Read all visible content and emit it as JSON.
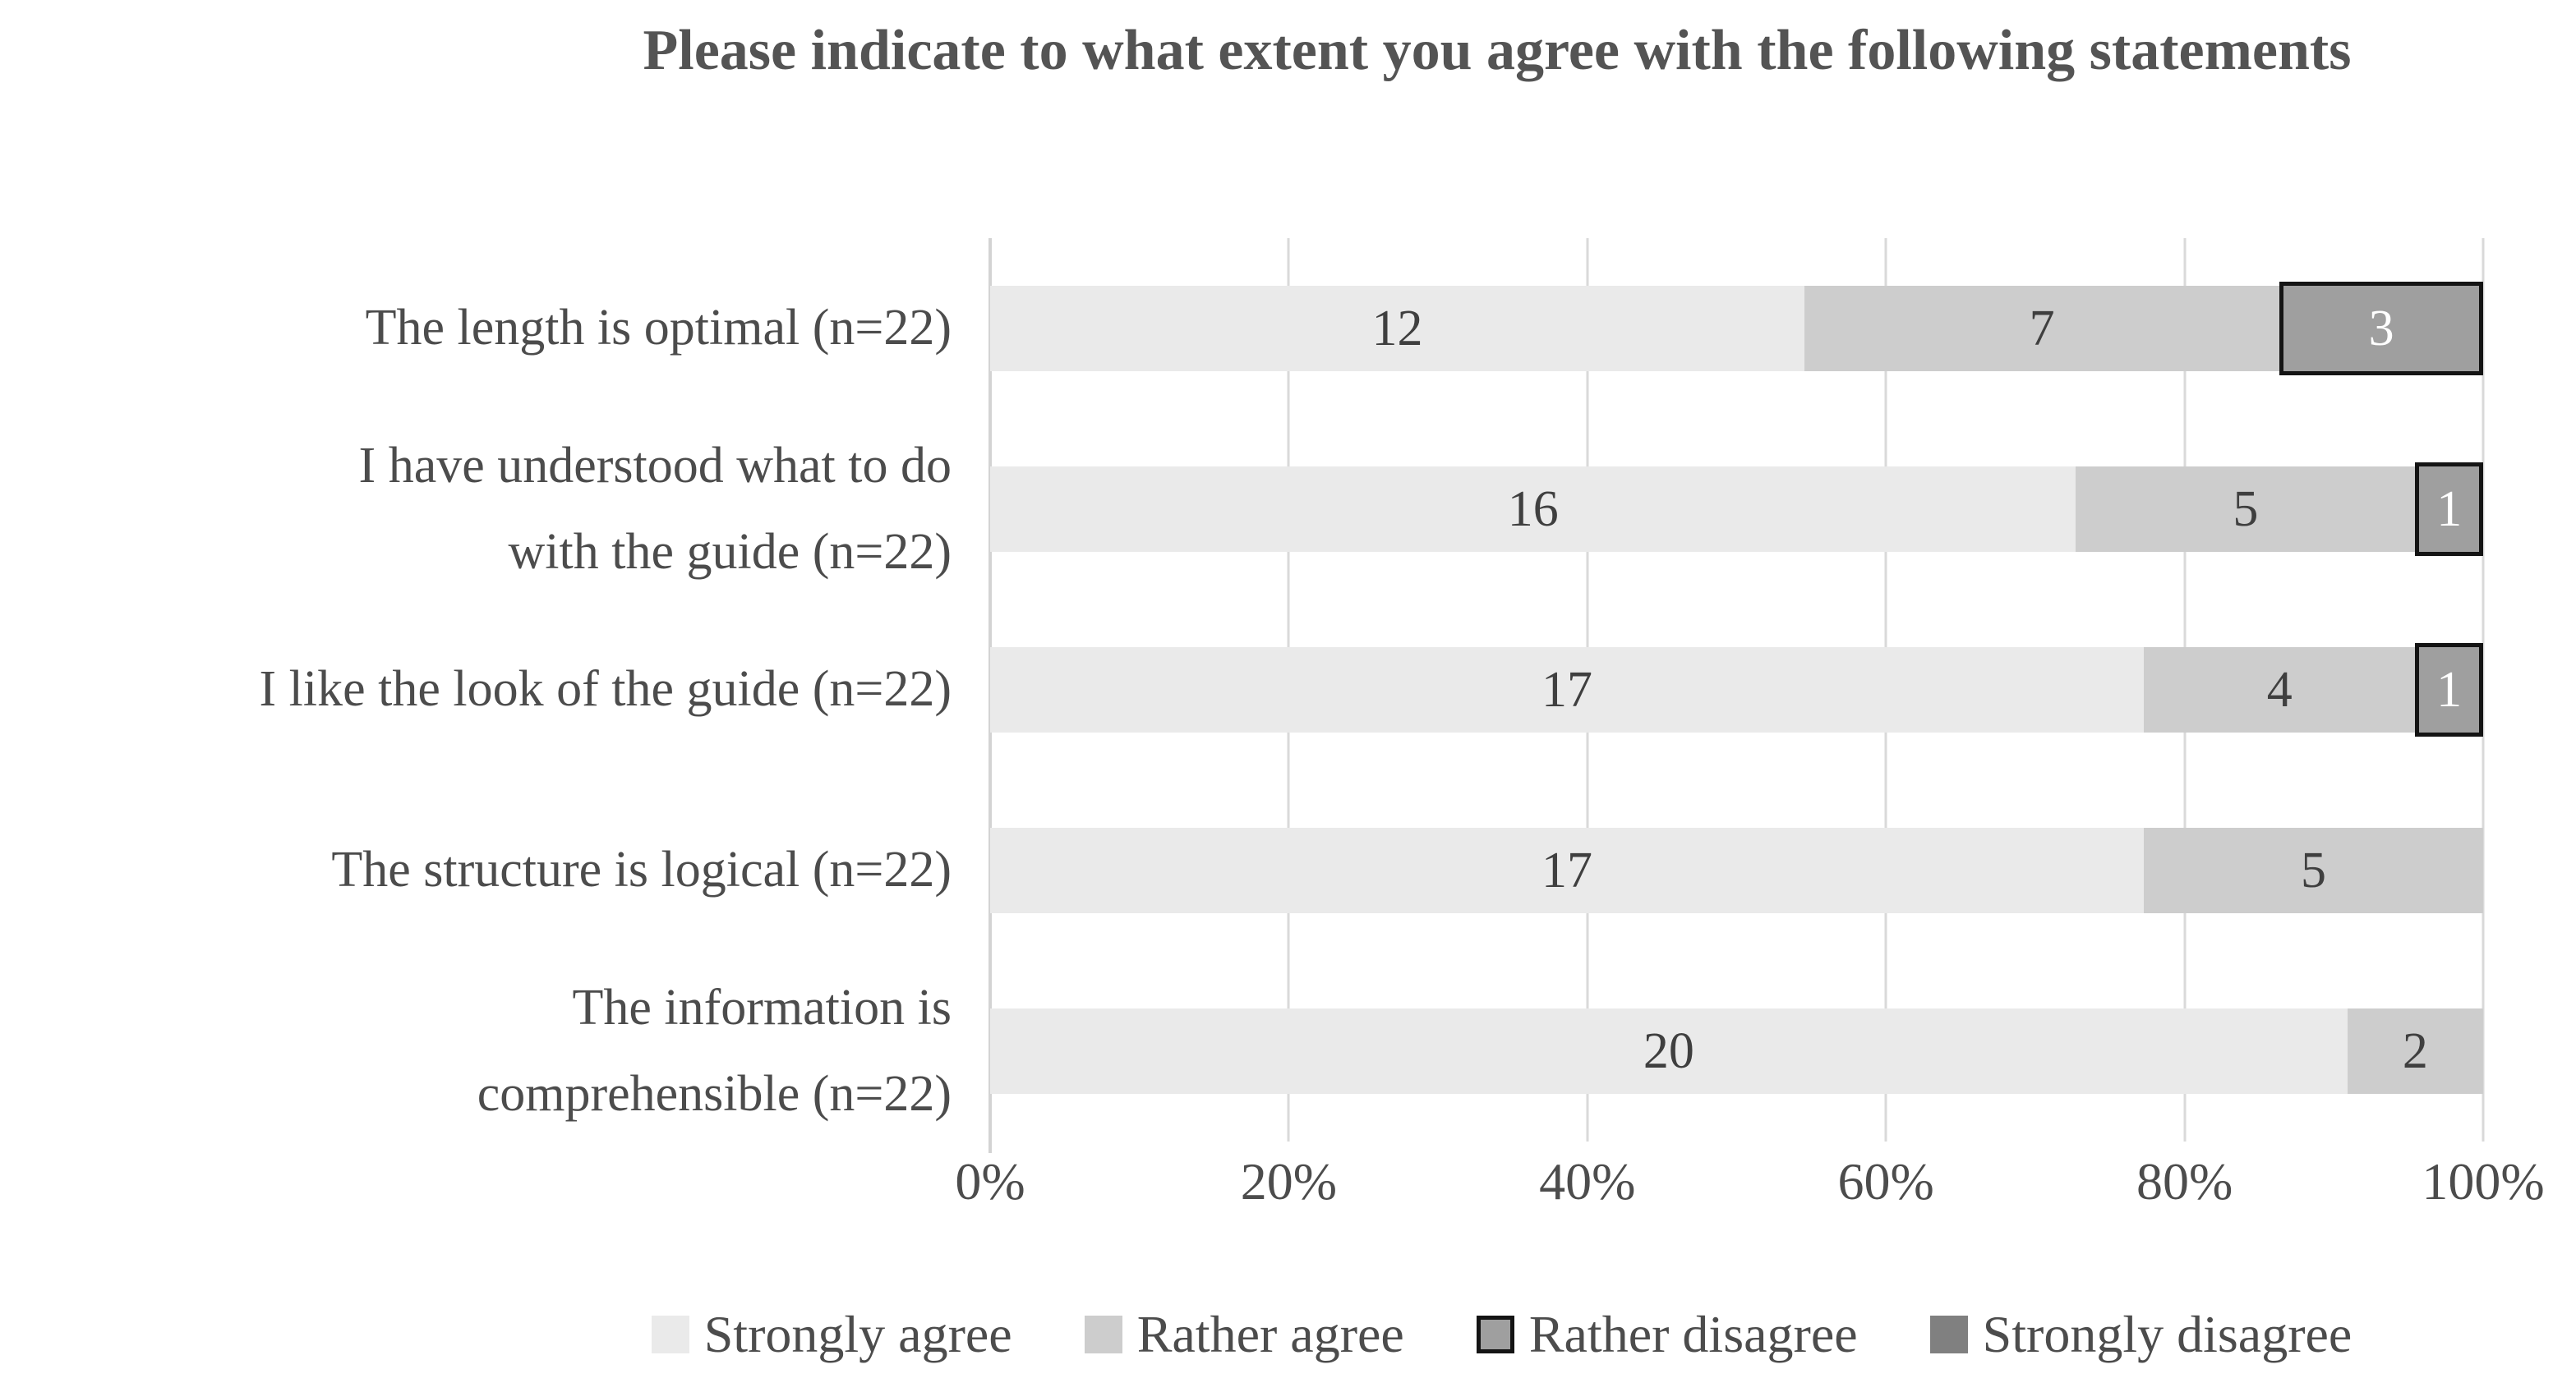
{
  "title": "Please indicate to what extent you agree with the following statements",
  "chart_data": {
    "type": "bar",
    "orientation": "horizontal",
    "stacked": true,
    "percent_axis": true,
    "n_per_category": 22,
    "title": "Please indicate to what extent you agree with the following statements",
    "categories": [
      "The length is optimal (n=22)",
      "I have understood what to do\nwith the guide (n=22)",
      "I like the look of the guide (n=22)",
      "The structure is logical (n=22)",
      "The information is\ncomprehensible (n=22)"
    ],
    "series": [
      {
        "name": "Strongly agree",
        "color": "#eaeaea",
        "bordered": false,
        "label_color": "dark",
        "values": [
          12,
          16,
          17,
          17,
          20
        ]
      },
      {
        "name": "Rather agree",
        "color": "#cdcdcd",
        "bordered": false,
        "label_color": "dark",
        "values": [
          7,
          5,
          4,
          5,
          2
        ]
      },
      {
        "name": "Rather disagree",
        "color": "#9f9f9f",
        "bordered": true,
        "label_color": "light",
        "values": [
          3,
          1,
          1,
          0,
          0
        ]
      },
      {
        "name": "Strongly disagree",
        "color": "#808080",
        "bordered": false,
        "label_color": "light",
        "values": [
          0,
          0,
          0,
          0,
          0
        ]
      }
    ],
    "x_axis_ticks": [
      "0%",
      "20%",
      "40%",
      "60%",
      "80%",
      "100%"
    ],
    "xlim": [
      0,
      100
    ],
    "gridlines": "vertical",
    "legend_position": "bottom",
    "xlabel": "",
    "ylabel": ""
  },
  "colors": {
    "background": "#ffffff",
    "gridline": "#d9d9d9",
    "axis_line": "#d3d3d3",
    "title_text": "#545454",
    "label_text": "#4c4c4c",
    "data_label_dark": "#3f3f3f",
    "data_label_light": "#ffffff",
    "segment_border": "#141414"
  }
}
